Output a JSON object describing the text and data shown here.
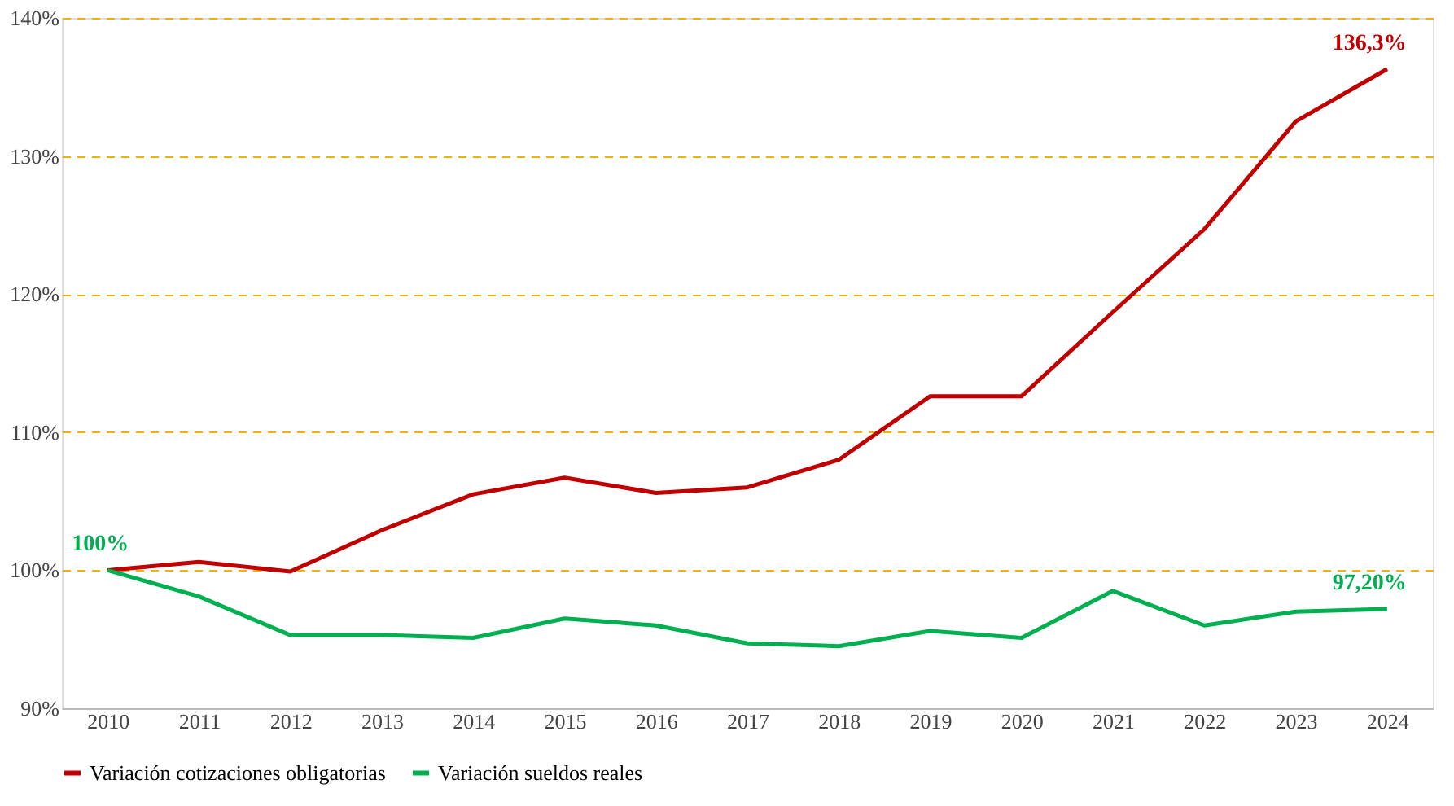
{
  "chart_data": {
    "type": "line",
    "categories": [
      "2010",
      "2011",
      "2012",
      "2013",
      "2014",
      "2015",
      "2016",
      "2017",
      "2018",
      "2019",
      "2020",
      "2021",
      "2022",
      "2023",
      "2024"
    ],
    "series": [
      {
        "name": "Variación cotizaciones obligatorias",
        "color": "#c00000",
        "values": [
          100,
          100.6,
          99.9,
          102.9,
          105.5,
          106.7,
          105.6,
          106.0,
          108.0,
          112.6,
          112.6,
          118.7,
          124.7,
          132.5,
          136.3
        ]
      },
      {
        "name": "Variación sueldos reales",
        "color": "#00b050",
        "values": [
          100,
          98.1,
          95.3,
          95.3,
          95.1,
          96.5,
          96.0,
          94.7,
          94.5,
          95.6,
          95.1,
          98.5,
          96.0,
          97.0,
          97.2
        ]
      }
    ],
    "ylim": [
      90,
      140
    ],
    "yticks": [
      {
        "value": 90,
        "label": "90%"
      },
      {
        "value": 100,
        "label": "100%"
      },
      {
        "value": 110,
        "label": "110%"
      },
      {
        "value": 120,
        "label": "120%"
      },
      {
        "value": 130,
        "label": "130%"
      },
      {
        "value": 140,
        "label": "140%"
      }
    ],
    "annotations": [
      {
        "text": "100%",
        "x": "2010",
        "y": 100
      },
      {
        "text": "136,3%",
        "x": "2024",
        "y": 136.3
      },
      {
        "text": "97,20%",
        "x": "2024",
        "y": 97.2
      }
    ],
    "grid": "y",
    "legend": "bottom",
    "marker": "none",
    "line_style": "solid"
  }
}
